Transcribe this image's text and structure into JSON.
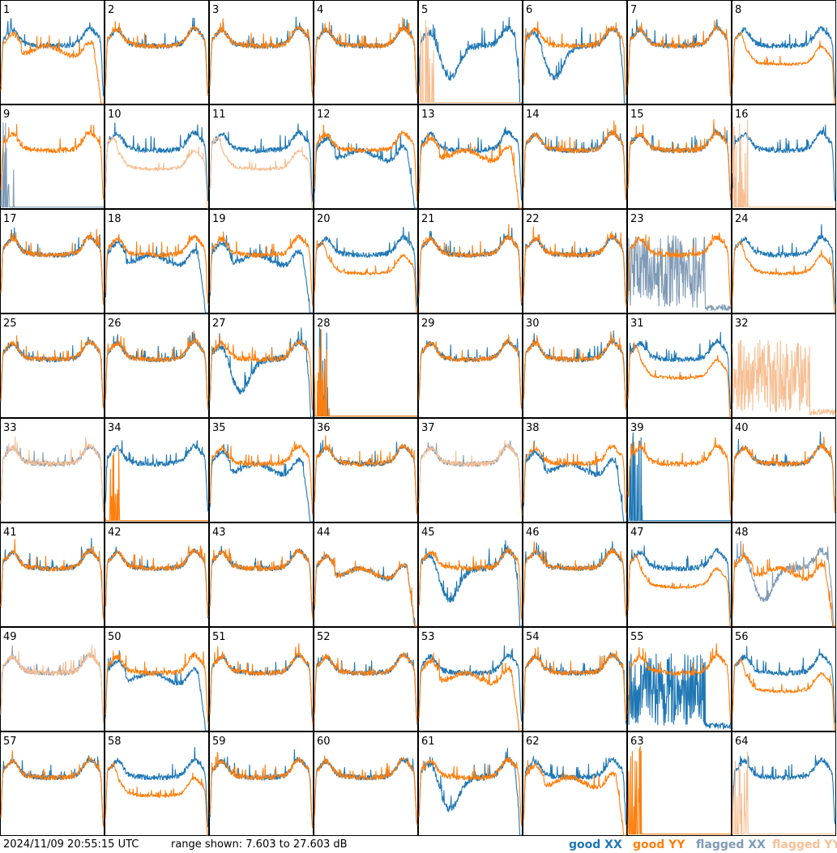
{
  "footer": {
    "timestamp": "2024/11/09 20:55:15 UTC",
    "range_text": "range shown: 7.603 to 27.603 dB"
  },
  "legend": {
    "good_xx": "good XX",
    "good_yy": "good YY",
    "flagged_xx": "flagged XX",
    "flagged_yy": "flagged YY"
  },
  "colors": {
    "good_xx": "#1f77b4",
    "good_yy": "#ff7f0e",
    "flagged_xx": "#7f9bb5",
    "flagged_yy": "#f7bf93"
  },
  "chart_data": {
    "type": "line",
    "layout": "8x8 small multiples",
    "ylim_db": [
      7.603,
      27.603
    ],
    "panels": [
      {
        "label": "1",
        "xx": "good",
        "yy": "good",
        "shape_xx": "normal",
        "shape_yy": "droop"
      },
      {
        "label": "2",
        "xx": "good",
        "yy": "good",
        "shape_xx": "normal",
        "shape_yy": "normal"
      },
      {
        "label": "3",
        "xx": "good",
        "yy": "good",
        "shape_xx": "normal",
        "shape_yy": "normal"
      },
      {
        "label": "4",
        "xx": "good",
        "yy": "good",
        "shape_xx": "normal",
        "shape_yy": "normal"
      },
      {
        "label": "5",
        "xx": "good",
        "yy": "flagged",
        "shape_xx": "dip",
        "shape_yy": "dead"
      },
      {
        "label": "6",
        "xx": "good",
        "yy": "good",
        "shape_xx": "dip",
        "shape_yy": "normal"
      },
      {
        "label": "7",
        "xx": "good",
        "yy": "good",
        "shape_xx": "normal",
        "shape_yy": "normal"
      },
      {
        "label": "8",
        "xx": "good",
        "yy": "good",
        "shape_xx": "normal",
        "shape_yy": "low"
      },
      {
        "label": "9",
        "xx": "flagged",
        "yy": "good",
        "shape_xx": "dead",
        "shape_yy": "normal"
      },
      {
        "label": "10",
        "xx": "good",
        "yy": "flagged",
        "shape_xx": "normal",
        "shape_yy": "low"
      },
      {
        "label": "11",
        "xx": "good",
        "yy": "flagged",
        "shape_xx": "normal",
        "shape_yy": "low"
      },
      {
        "label": "12",
        "xx": "good",
        "yy": "good",
        "shape_xx": "droop",
        "shape_yy": "normal"
      },
      {
        "label": "13",
        "xx": "good",
        "yy": "good",
        "shape_xx": "normal",
        "shape_yy": "droop"
      },
      {
        "label": "14",
        "xx": "good",
        "yy": "good",
        "shape_xx": "normal",
        "shape_yy": "normal"
      },
      {
        "label": "15",
        "xx": "good",
        "yy": "good",
        "shape_xx": "normal",
        "shape_yy": "normal"
      },
      {
        "label": "16",
        "xx": "good",
        "yy": "flagged",
        "shape_xx": "normal",
        "shape_yy": "dead"
      },
      {
        "label": "17",
        "xx": "good",
        "yy": "good",
        "shape_xx": "normal",
        "shape_yy": "normal"
      },
      {
        "label": "18",
        "xx": "good",
        "yy": "good",
        "shape_xx": "droop",
        "shape_yy": "normal"
      },
      {
        "label": "19",
        "xx": "good",
        "yy": "good",
        "shape_xx": "droop",
        "shape_yy": "normal"
      },
      {
        "label": "20",
        "xx": "good",
        "yy": "good",
        "shape_xx": "normal",
        "shape_yy": "low"
      },
      {
        "label": "21",
        "xx": "good",
        "yy": "good",
        "shape_xx": "normal",
        "shape_yy": "normal"
      },
      {
        "label": "22",
        "xx": "good",
        "yy": "good",
        "shape_xx": "normal",
        "shape_yy": "normal"
      },
      {
        "label": "23",
        "xx": "flagged",
        "yy": "good",
        "shape_xx": "spiky",
        "shape_yy": "normal"
      },
      {
        "label": "24",
        "xx": "good",
        "yy": "good",
        "shape_xx": "normal",
        "shape_yy": "low"
      },
      {
        "label": "25",
        "xx": "good",
        "yy": "good",
        "shape_xx": "normal",
        "shape_yy": "normal"
      },
      {
        "label": "26",
        "xx": "good",
        "yy": "good",
        "shape_xx": "normal",
        "shape_yy": "normal"
      },
      {
        "label": "27",
        "xx": "good",
        "yy": "good",
        "shape_xx": "dip",
        "shape_yy": "normal"
      },
      {
        "label": "28",
        "xx": "good",
        "yy": "good",
        "shape_xx": "dead",
        "shape_yy": "dead"
      },
      {
        "label": "29",
        "xx": "good",
        "yy": "good",
        "shape_xx": "normal",
        "shape_yy": "normal"
      },
      {
        "label": "30",
        "xx": "good",
        "yy": "good",
        "shape_xx": "normal",
        "shape_yy": "normal"
      },
      {
        "label": "31",
        "xx": "good",
        "yy": "good",
        "shape_xx": "normal",
        "shape_yy": "low"
      },
      {
        "label": "32",
        "xx": "flagged",
        "yy": "flagged",
        "shape_xx": "none",
        "shape_yy": "spiky"
      },
      {
        "label": "33",
        "xx": "flagged",
        "yy": "flagged",
        "shape_xx": "normal",
        "shape_yy": "normal"
      },
      {
        "label": "34",
        "xx": "good",
        "yy": "good",
        "shape_xx": "normal",
        "shape_yy": "dead"
      },
      {
        "label": "35",
        "xx": "good",
        "yy": "good",
        "shape_xx": "droop",
        "shape_yy": "normal"
      },
      {
        "label": "36",
        "xx": "good",
        "yy": "good",
        "shape_xx": "normal",
        "shape_yy": "normal"
      },
      {
        "label": "37",
        "xx": "flagged",
        "yy": "flagged",
        "shape_xx": "normal",
        "shape_yy": "normal"
      },
      {
        "label": "38",
        "xx": "good",
        "yy": "good",
        "shape_xx": "droop",
        "shape_yy": "normal"
      },
      {
        "label": "39",
        "xx": "good",
        "yy": "good",
        "shape_xx": "dead",
        "shape_yy": "normal"
      },
      {
        "label": "40",
        "xx": "good",
        "yy": "good",
        "shape_xx": "normal",
        "shape_yy": "normal"
      },
      {
        "label": "41",
        "xx": "good",
        "yy": "good",
        "shape_xx": "normal",
        "shape_yy": "normal"
      },
      {
        "label": "42",
        "xx": "good",
        "yy": "good",
        "shape_xx": "normal",
        "shape_yy": "normal"
      },
      {
        "label": "43",
        "xx": "good",
        "yy": "good",
        "shape_xx": "normal",
        "shape_yy": "normal"
      },
      {
        "label": "44",
        "xx": "good",
        "yy": "good",
        "shape_xx": "droop",
        "shape_yy": "droop"
      },
      {
        "label": "45",
        "xx": "good",
        "yy": "good",
        "shape_xx": "dip",
        "shape_yy": "normal"
      },
      {
        "label": "46",
        "xx": "good",
        "yy": "good",
        "shape_xx": "normal",
        "shape_yy": "normal"
      },
      {
        "label": "47",
        "xx": "good",
        "yy": "good",
        "shape_xx": "normal",
        "shape_yy": "low"
      },
      {
        "label": "48",
        "xx": "flagged",
        "yy": "good",
        "shape_xx": "dip",
        "shape_yy": "droop"
      },
      {
        "label": "49",
        "xx": "flagged",
        "yy": "flagged",
        "shape_xx": "normal",
        "shape_yy": "normal"
      },
      {
        "label": "50",
        "xx": "good",
        "yy": "good",
        "shape_xx": "droop",
        "shape_yy": "normal"
      },
      {
        "label": "51",
        "xx": "good",
        "yy": "good",
        "shape_xx": "normal",
        "shape_yy": "normal"
      },
      {
        "label": "52",
        "xx": "good",
        "yy": "good",
        "shape_xx": "normal",
        "shape_yy": "normal"
      },
      {
        "label": "53",
        "xx": "good",
        "yy": "good",
        "shape_xx": "normal",
        "shape_yy": "droop"
      },
      {
        "label": "54",
        "xx": "good",
        "yy": "good",
        "shape_xx": "normal",
        "shape_yy": "normal"
      },
      {
        "label": "55",
        "xx": "good",
        "yy": "good",
        "shape_xx": "spiky",
        "shape_yy": "normal"
      },
      {
        "label": "56",
        "xx": "good",
        "yy": "good",
        "shape_xx": "normal",
        "shape_yy": "low"
      },
      {
        "label": "57",
        "xx": "good",
        "yy": "good",
        "shape_xx": "normal",
        "shape_yy": "normal"
      },
      {
        "label": "58",
        "xx": "good",
        "yy": "good",
        "shape_xx": "normal",
        "shape_yy": "low"
      },
      {
        "label": "59",
        "xx": "good",
        "yy": "good",
        "shape_xx": "normal",
        "shape_yy": "normal"
      },
      {
        "label": "60",
        "xx": "good",
        "yy": "good",
        "shape_xx": "normal",
        "shape_yy": "normal"
      },
      {
        "label": "61",
        "xx": "good",
        "yy": "good",
        "shape_xx": "dip",
        "shape_yy": "normal"
      },
      {
        "label": "62",
        "xx": "good",
        "yy": "good",
        "shape_xx": "normal",
        "shape_yy": "droop"
      },
      {
        "label": "63",
        "xx": "good",
        "yy": "good",
        "shape_xx": "none",
        "shape_yy": "dead"
      },
      {
        "label": "64",
        "xx": "good",
        "yy": "flagged",
        "shape_xx": "normal",
        "shape_yy": "dead"
      }
    ]
  }
}
